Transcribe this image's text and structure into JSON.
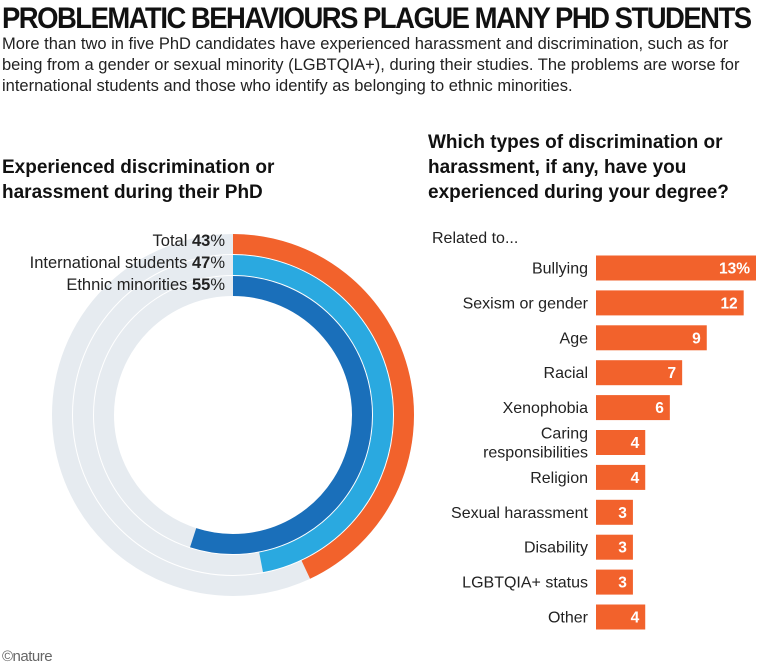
{
  "title": "PROBLEMATIC BEHAVIOURS PLAGUE MANY PHD STUDENTS",
  "standfirst": "More than two in five PhD candidates have experienced harassment and discrimination, such as for being from a gender or sexual minority (LGBTQIA+), during their studies. The problems are worse for international students and those who identify as belonging to ethnic minorities.",
  "credit": "©nature",
  "colors": {
    "orange": "#f2622c",
    "light_blue": "#2aa9e0",
    "dark_blue": "#1a6fba",
    "track": "#e6ebf0",
    "label_text": "#ffffff"
  },
  "chart_data": [
    {
      "type": "pie",
      "title": "Experienced discrimination or harassment during their PhD",
      "unit": "%",
      "series": [
        {
          "name": "Total",
          "value": 43,
          "color": "#f2622c"
        },
        {
          "name": "International students",
          "value": 47,
          "color": "#2aa9e0"
        },
        {
          "name": "Ethnic minorities",
          "value": 55,
          "color": "#1a6fba"
        }
      ]
    },
    {
      "type": "bar",
      "orientation": "horizontal",
      "title": "Which types of discrimination or harassment, if any, have you experienced during your degree?",
      "subtitle": "Related to...",
      "unit": "%",
      "categories": [
        "Bullying",
        "Sexism or gender",
        "Age",
        "Racial",
        "Xenophobia",
        "Caring responsibilities",
        "Religion",
        "Sexual harassment",
        "Disability",
        "LGBTQIA+ status",
        "Other"
      ],
      "category_lines": [
        [
          "Bullying"
        ],
        [
          "Sexism or gender"
        ],
        [
          "Age"
        ],
        [
          "Racial"
        ],
        [
          "Xenophobia"
        ],
        [
          "Caring",
          "responsibilities"
        ],
        [
          "Religion"
        ],
        [
          "Sexual harassment"
        ],
        [
          "Disability"
        ],
        [
          "LGBTQIA+ status"
        ],
        [
          "Other"
        ]
      ],
      "values": [
        13,
        12,
        9,
        7,
        6,
        4,
        4,
        3,
        3,
        3,
        4
      ],
      "value_labels": [
        "13%",
        "12",
        "9",
        "7",
        "6",
        "4",
        "4",
        "3",
        "3",
        "3",
        "4"
      ],
      "color": "#f2622c"
    }
  ]
}
